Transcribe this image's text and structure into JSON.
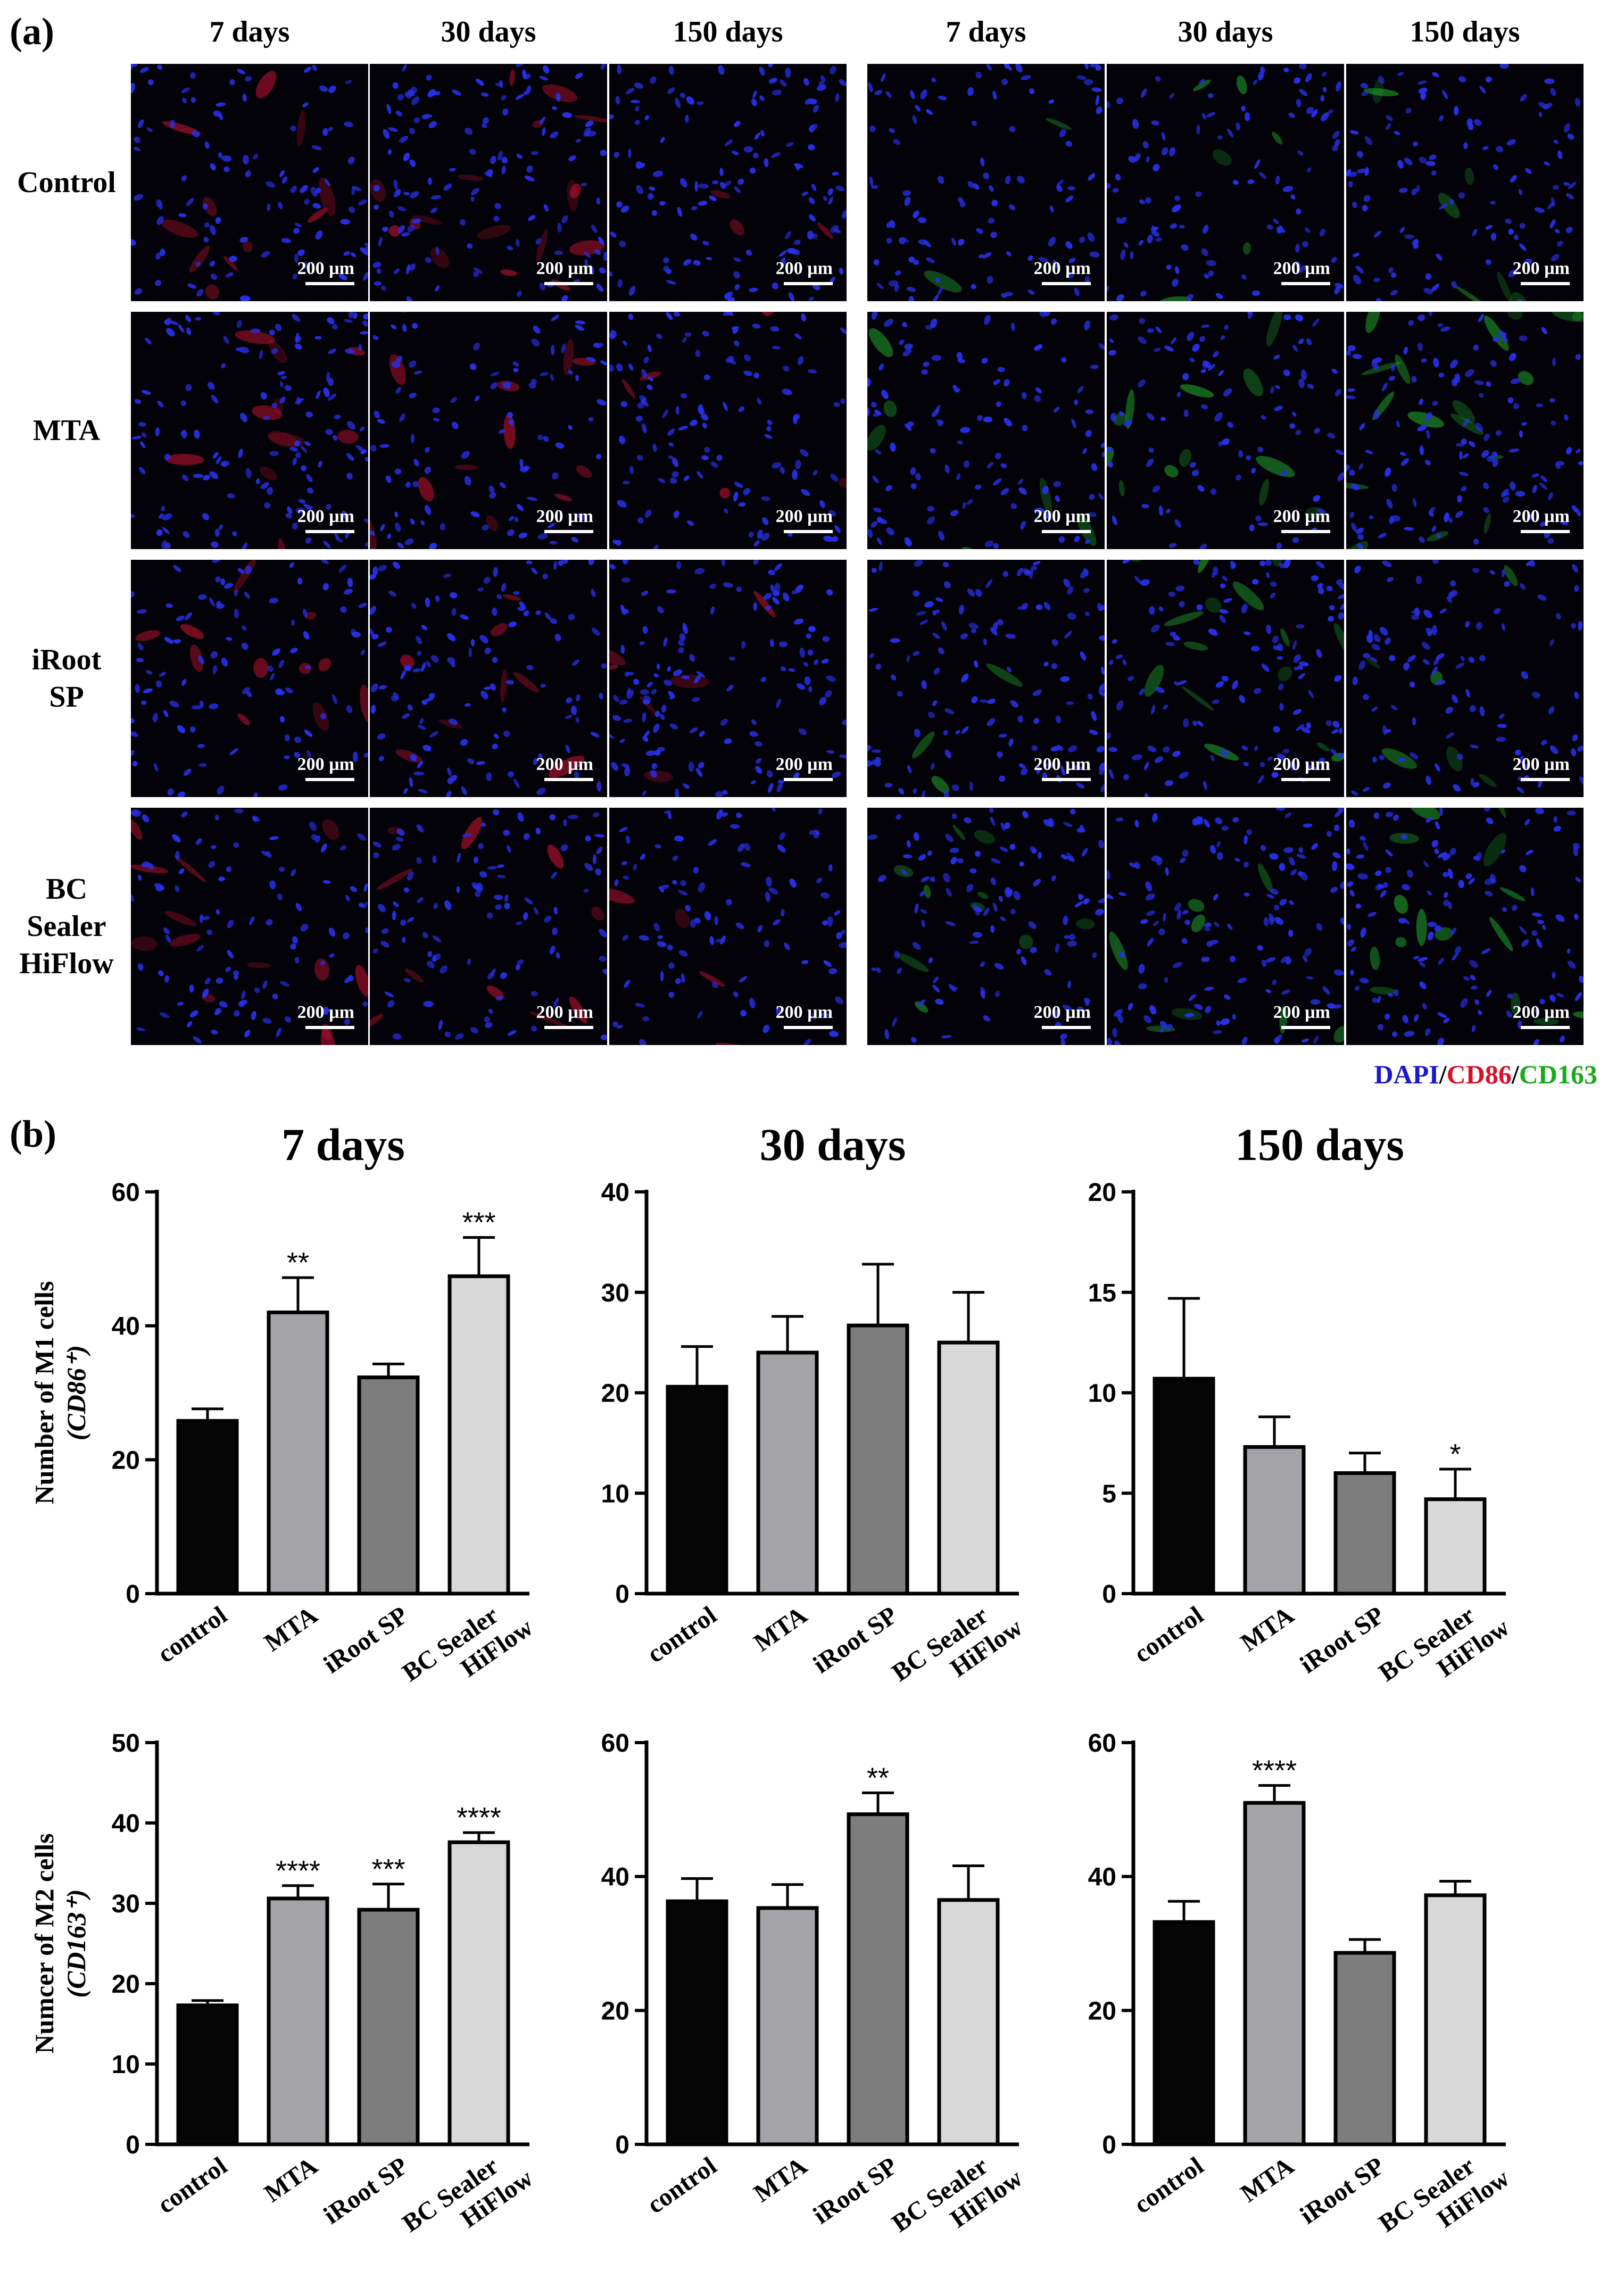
{
  "panel_a": {
    "label": "(a)",
    "col_headers": [
      "7 days",
      "30 days",
      "150 days",
      "7 days",
      "30 days",
      "150 days"
    ],
    "row_labels": [
      "Control",
      "MTA",
      "iRoot\nSP",
      "BC\nSealer\nHiFlow"
    ],
    "scale_label": "200 µm",
    "legend": {
      "items": [
        {
          "text": "DAPI",
          "color": "#1a1acc"
        },
        {
          "text": "/",
          "color": "#000000"
        },
        {
          "text": "CD86",
          "color": "#d8102a"
        },
        {
          "text": "/",
          "color": "#000000"
        },
        {
          "text": "CD163",
          "color": "#1aaa1a"
        }
      ]
    }
  },
  "panel_b": {
    "label": "(b)"
  },
  "chart_data": [
    {
      "type": "bar",
      "title": "7 days",
      "ylabel": "Number of M1 cells",
      "ylabel_sub": "(CD86⁺)",
      "categories": [
        "control",
        "MTA",
        "iRoot SP",
        "BC Sealer HiFlow"
      ],
      "values": [
        25.8,
        42.0,
        32.3,
        47.4
      ],
      "errors": [
        1.8,
        5.2,
        2.0,
        5.8
      ],
      "annotations": [
        "",
        "**",
        "",
        "***"
      ],
      "ylim": [
        0,
        60
      ],
      "yticks": [
        0,
        20,
        40,
        60
      ]
    },
    {
      "type": "bar",
      "title": "30 days",
      "ylabel": "",
      "categories": [
        "control",
        "MTA",
        "iRoot SP",
        "BC Sealer HiFlow"
      ],
      "values": [
        20.6,
        24.0,
        26.7,
        25.0
      ],
      "errors": [
        4.0,
        3.6,
        6.1,
        5.0
      ],
      "annotations": [
        "",
        "",
        "",
        ""
      ],
      "ylim": [
        0,
        40
      ],
      "yticks": [
        0,
        10,
        20,
        30,
        40
      ]
    },
    {
      "type": "bar",
      "title": "150 days",
      "ylabel": "",
      "categories": [
        "control",
        "MTA",
        "iRoot SP",
        "BC Sealer HiFlow"
      ],
      "values": [
        10.7,
        7.3,
        6.0,
        4.7
      ],
      "errors": [
        4.0,
        1.5,
        1.0,
        1.5
      ],
      "annotations": [
        "",
        "",
        "",
        "*"
      ],
      "ylim": [
        0,
        20
      ],
      "yticks": [
        0,
        5,
        10,
        15,
        20
      ]
    },
    {
      "type": "bar",
      "title": "",
      "ylabel": "Numcer of M2 cells",
      "ylabel_sub": "(CD163⁺)",
      "categories": [
        "control",
        "MTA",
        "iRoot SP",
        "BC Sealer HiFlow"
      ],
      "values": [
        17.3,
        30.6,
        29.2,
        37.6
      ],
      "errors": [
        0.6,
        1.6,
        3.2,
        1.2
      ],
      "annotations": [
        "",
        "****",
        "***",
        "****"
      ],
      "ylim": [
        0,
        50
      ],
      "yticks": [
        0,
        10,
        20,
        30,
        40,
        50
      ]
    },
    {
      "type": "bar",
      "title": "",
      "ylabel": "",
      "categories": [
        "control",
        "MTA",
        "iRoot SP",
        "BC Sealer HiFlow"
      ],
      "values": [
        36.3,
        35.3,
        49.3,
        36.5
      ],
      "errors": [
        3.4,
        3.5,
        3.2,
        5.1
      ],
      "annotations": [
        "",
        "",
        "**",
        ""
      ],
      "ylim": [
        0,
        60
      ],
      "yticks": [
        0,
        20,
        40,
        60
      ]
    },
    {
      "type": "bar",
      "title": "",
      "ylabel": "",
      "categories": [
        "control",
        "MTA",
        "iRoot SP",
        "BC Sealer HiFlow"
      ],
      "values": [
        33.2,
        51.0,
        28.6,
        37.2
      ],
      "errors": [
        3.1,
        2.6,
        2.0,
        2.1
      ],
      "annotations": [
        "",
        "****",
        "",
        ""
      ],
      "ylim": [
        0,
        60
      ],
      "yticks": [
        0,
        20,
        40,
        60
      ]
    }
  ],
  "colors": {
    "bars": [
      "#050505",
      "#a3a3a8",
      "#7d7d7d",
      "#d8d8d8"
    ]
  }
}
